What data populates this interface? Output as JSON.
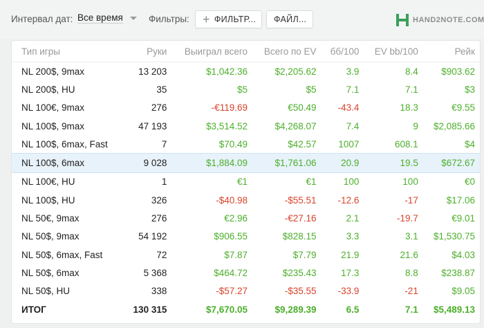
{
  "topbar": {
    "date_label": "Интервал дат:",
    "date_value": "Все время",
    "filters_label": "Фильтры:",
    "filter_button": "ФИЛЬТР...",
    "files_button": "ФАЙЛ...",
    "logo_text": "HAND2NOTE.COM"
  },
  "colors": {
    "positive": "#4caf2b",
    "negative": "#d9432b",
    "selected_row": "#e8f2fb",
    "logo": "#3aa05a"
  },
  "table": {
    "headers": [
      "Тип игры",
      "Руки",
      "Выиграл всего",
      "Всего по EV",
      "бб/100",
      "EV bb/100",
      "Рейк"
    ],
    "rows": [
      {
        "game": "NL 200$, 9max",
        "hands": "13 203",
        "won": "$1,042.36",
        "won_s": "pos",
        "ev": "$2,205.62",
        "ev_s": "pos",
        "bb": "3.9",
        "bb_s": "pos",
        "evbb": "8.4",
        "evbb_s": "pos",
        "rake": "$903.62"
      },
      {
        "game": "NL 200$, HU",
        "hands": "35",
        "won": "$5",
        "won_s": "pos",
        "ev": "$5",
        "ev_s": "pos",
        "bb": "7.1",
        "bb_s": "pos",
        "evbb": "7.1",
        "evbb_s": "pos",
        "rake": "$3"
      },
      {
        "game": "NL 100€, 9max",
        "hands": "276",
        "won": "-€119.69",
        "won_s": "neg",
        "ev": "€50.49",
        "ev_s": "pos",
        "bb": "-43.4",
        "bb_s": "neg",
        "evbb": "18.3",
        "evbb_s": "pos",
        "rake": "€9.55"
      },
      {
        "game": "NL 100$, 9max",
        "hands": "47 193",
        "won": "$3,514.52",
        "won_s": "pos",
        "ev": "$4,268.07",
        "ev_s": "pos",
        "bb": "7.4",
        "bb_s": "pos",
        "evbb": "9",
        "evbb_s": "pos",
        "rake": "$2,085.66"
      },
      {
        "game": "NL 100$, 6max, Fast",
        "hands": "7",
        "won": "$70.49",
        "won_s": "pos",
        "ev": "$42.57",
        "ev_s": "pos",
        "bb": "1007",
        "bb_s": "pos",
        "evbb": "608.1",
        "evbb_s": "pos",
        "rake": "$4"
      },
      {
        "game": "NL 100$, 6max",
        "hands": "9 028",
        "won": "$1,884.09",
        "won_s": "pos",
        "ev": "$1,761.06",
        "ev_s": "pos",
        "bb": "20.9",
        "bb_s": "pos",
        "evbb": "19.5",
        "evbb_s": "pos",
        "rake": "$672.67",
        "selected": true
      },
      {
        "game": "NL 100€, HU",
        "hands": "1",
        "won": "€1",
        "won_s": "pos",
        "ev": "€1",
        "ev_s": "pos",
        "bb": "100",
        "bb_s": "pos",
        "evbb": "100",
        "evbb_s": "pos",
        "rake": "€0"
      },
      {
        "game": "NL 100$, HU",
        "hands": "326",
        "won": "-$40.98",
        "won_s": "neg",
        "ev": "-$55.51",
        "ev_s": "neg",
        "bb": "-12.6",
        "bb_s": "neg",
        "evbb": "-17",
        "evbb_s": "neg",
        "rake": "$17.06"
      },
      {
        "game": "NL 50€, 9max",
        "hands": "276",
        "won": "€2.96",
        "won_s": "pos",
        "ev": "-€27.16",
        "ev_s": "neg",
        "bb": "2.1",
        "bb_s": "pos",
        "evbb": "-19.7",
        "evbb_s": "neg",
        "rake": "€9.01"
      },
      {
        "game": "NL 50$, 9max",
        "hands": "54 192",
        "won": "$906.55",
        "won_s": "pos",
        "ev": "$828.15",
        "ev_s": "pos",
        "bb": "3.3",
        "bb_s": "pos",
        "evbb": "3.1",
        "evbb_s": "pos",
        "rake": "$1,530.75"
      },
      {
        "game": "NL 50$, 6max, Fast",
        "hands": "72",
        "won": "$7.87",
        "won_s": "pos",
        "ev": "$7.79",
        "ev_s": "pos",
        "bb": "21.9",
        "bb_s": "pos",
        "evbb": "21.6",
        "evbb_s": "pos",
        "rake": "$4.03"
      },
      {
        "game": "NL 50$, 6max",
        "hands": "5 368",
        "won": "$464.72",
        "won_s": "pos",
        "ev": "$235.43",
        "ev_s": "pos",
        "bb": "17.3",
        "bb_s": "pos",
        "evbb": "8.8",
        "evbb_s": "pos",
        "rake": "$238.87"
      },
      {
        "game": "NL 50$, HU",
        "hands": "338",
        "won": "-$57.27",
        "won_s": "neg",
        "ev": "-$35.55",
        "ev_s": "neg",
        "bb": "-33.9",
        "bb_s": "neg",
        "evbb": "-21",
        "evbb_s": "neg",
        "rake": "$9.05"
      }
    ],
    "total": {
      "game": "ИТОГ",
      "hands": "130 315",
      "won": "$7,670.05",
      "ev": "$9,289.39",
      "bb": "6.5",
      "evbb": "7.1",
      "rake": "$5,489.13"
    }
  }
}
